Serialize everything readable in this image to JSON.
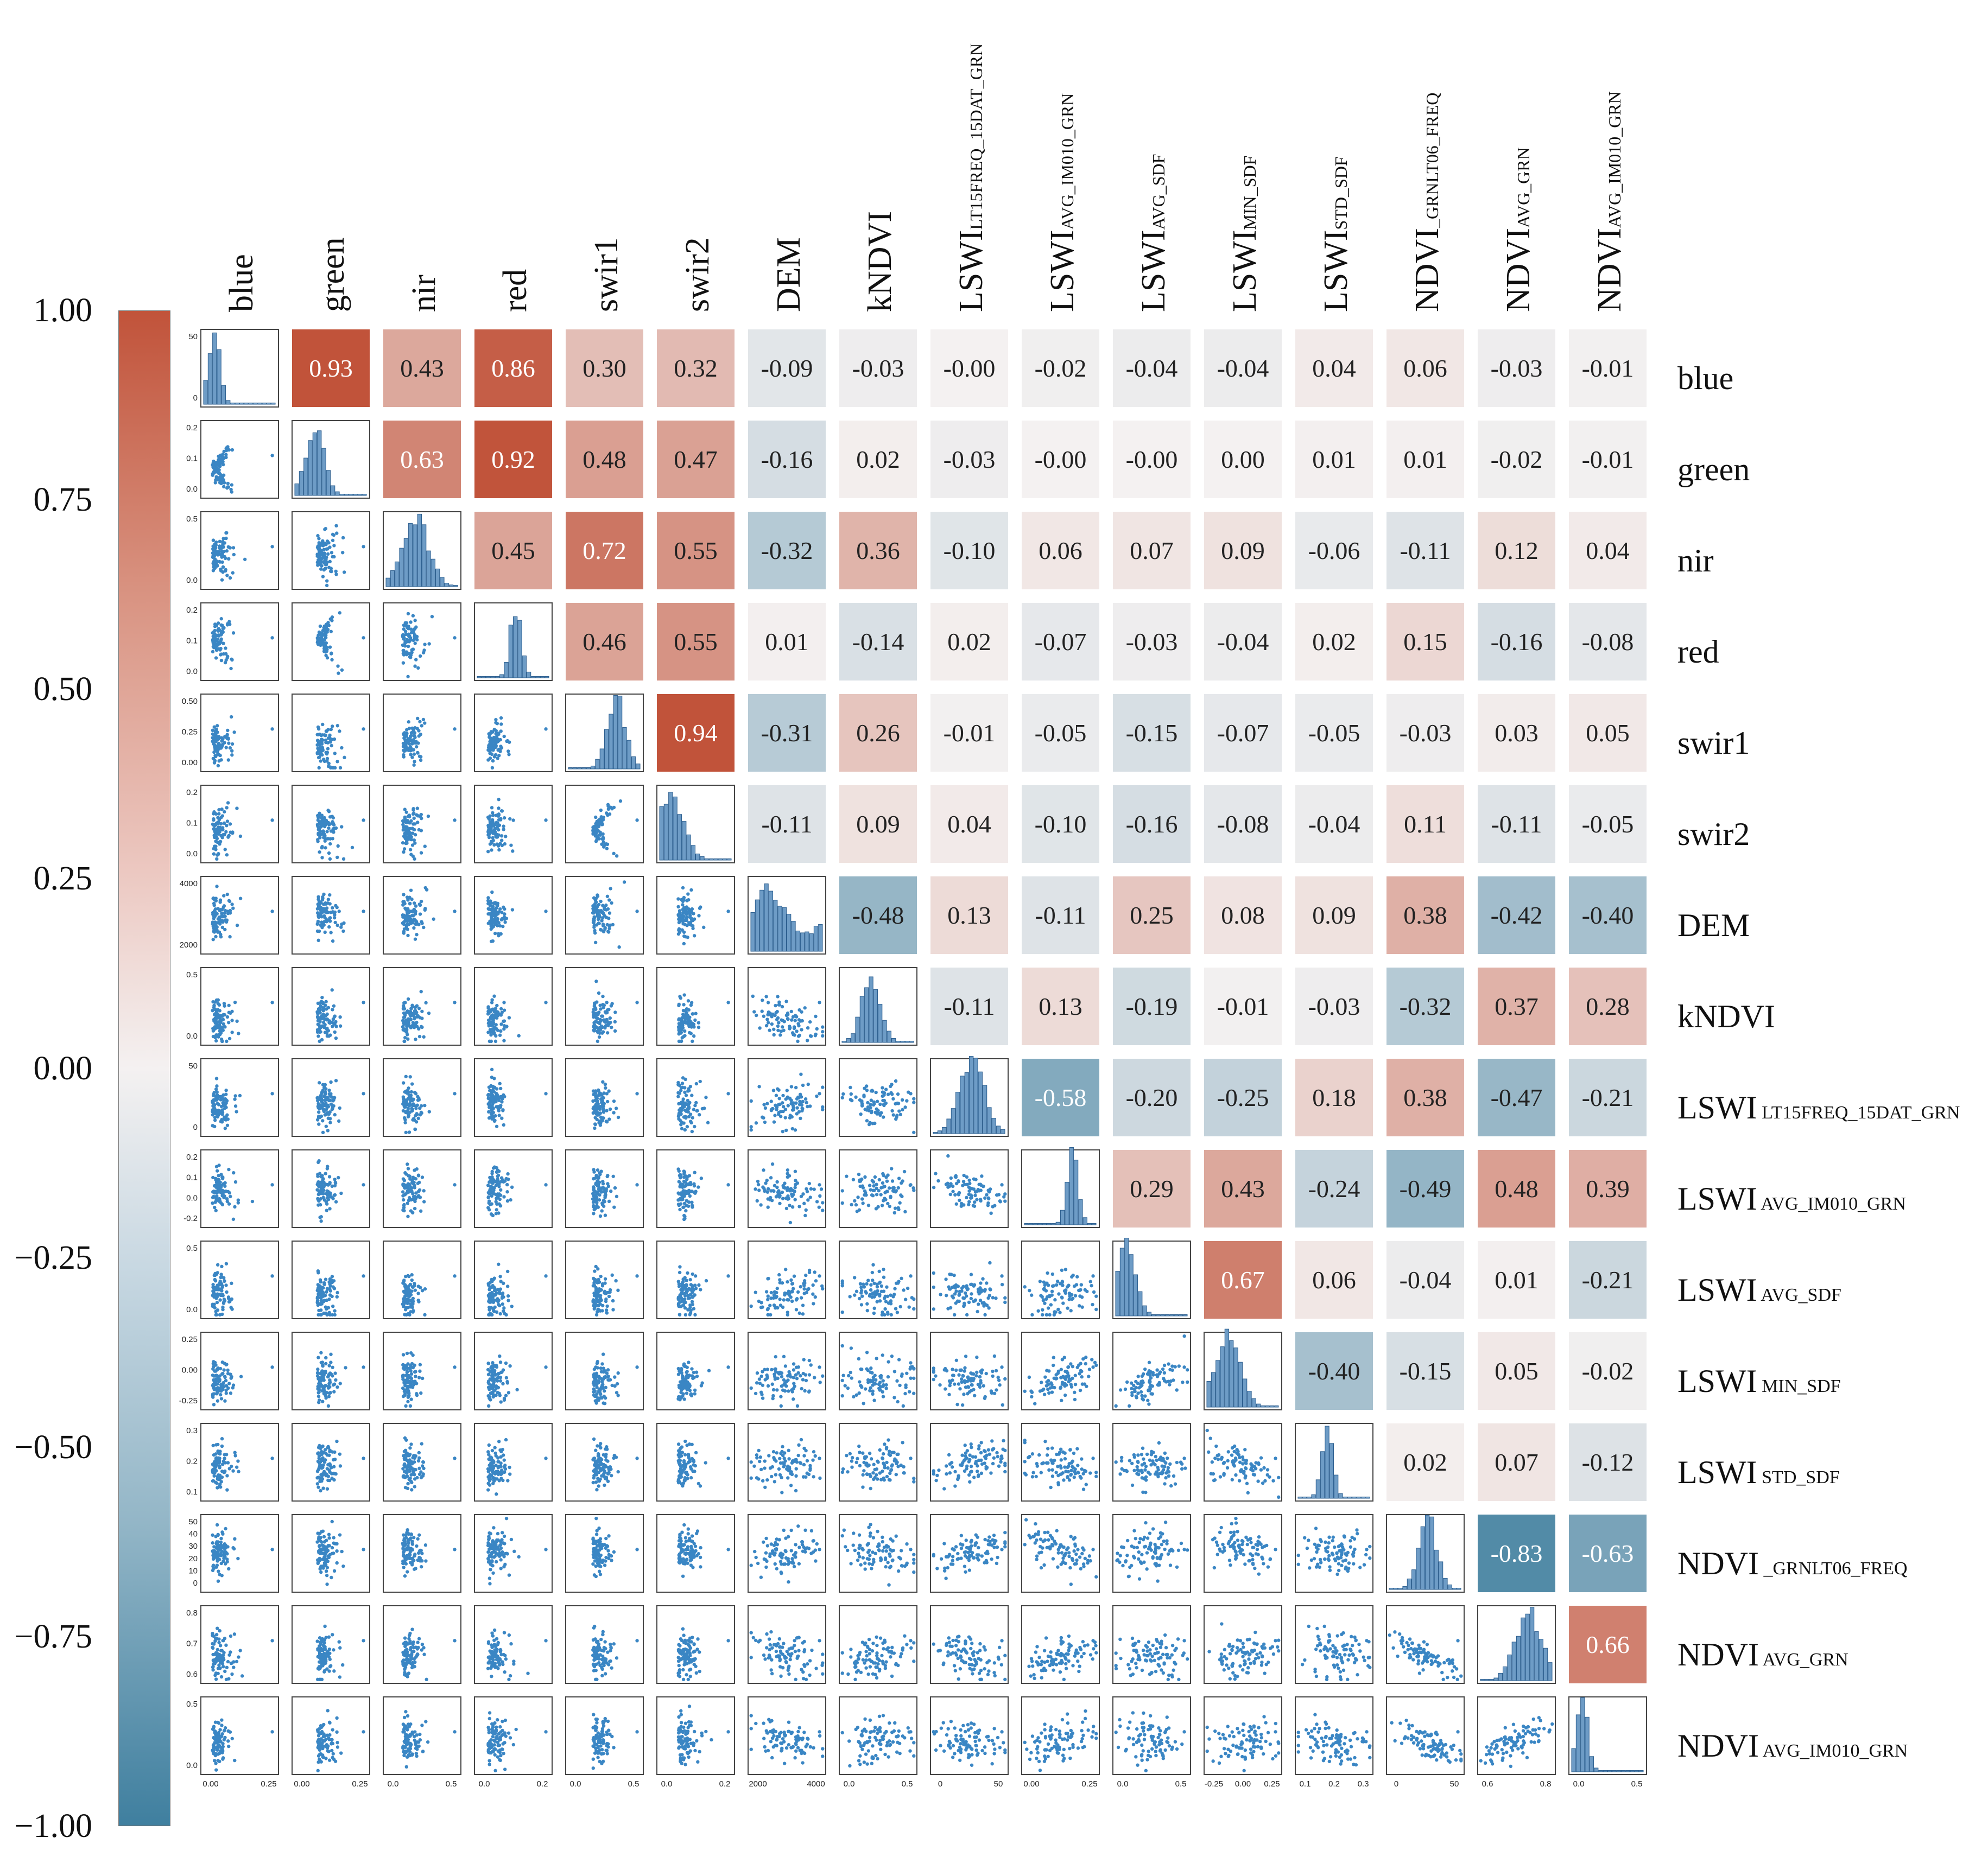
{
  "chart_data": {
    "type": "heatmap",
    "title": "",
    "variables": [
      {
        "name": "blue",
        "label": "blue",
        "sub": ""
      },
      {
        "name": "green",
        "label": "green",
        "sub": ""
      },
      {
        "name": "nir",
        "label": "nir",
        "sub": ""
      },
      {
        "name": "red",
        "label": "red",
        "sub": ""
      },
      {
        "name": "swir1",
        "label": "swir1",
        "sub": ""
      },
      {
        "name": "swir2",
        "label": "swir2",
        "sub": ""
      },
      {
        "name": "DEM",
        "label": "DEM",
        "sub": ""
      },
      {
        "name": "kNDVI",
        "label": "kNDVI",
        "sub": ""
      },
      {
        "name": "LSWI_LT15FREQ_15DAT_GRN",
        "label": "LSWI",
        "sub": "LT15FREQ_15DAT_GRN"
      },
      {
        "name": "LSWI_AVG_IM010_GRN",
        "label": "LSWI",
        "sub": "AVG_IM010_GRN"
      },
      {
        "name": "LSWI_AVG_SDF",
        "label": "LSWI",
        "sub": "AVG_SDF"
      },
      {
        "name": "LSWI_MIN_SDF",
        "label": "LSWI",
        "sub": "MIN_SDF"
      },
      {
        "name": "LSWI_STD_SDF",
        "label": "LSWI",
        "sub": "STD_SDF"
      },
      {
        "name": "NDVI_GRNLT06_FREQ",
        "label": "NDVI",
        "sub": "_GRNLT06_FREQ"
      },
      {
        "name": "NDVI_AVG_GRN",
        "label": "NDVI",
        "sub": "AVG_GRN"
      },
      {
        "name": "NDVI_AVG_IM010_GRN",
        "label": "NDVI",
        "sub": "AVG_IM010_GRN"
      }
    ],
    "colorbar": {
      "range": [
        -1.0,
        1.0
      ],
      "ticks": [
        "1.00",
        "0.75",
        "0.50",
        "0.25",
        "0.00",
        "−0.25",
        "−0.50",
        "−0.75",
        "−1.00"
      ],
      "low_color": "#3f7f9f",
      "mid_color": "#f4f1f1",
      "high_color": "#c1533a"
    },
    "upper_triangle_correlations": [
      [
        "",
        "0.93",
        "0.43",
        "0.86",
        "0.30",
        "0.32",
        "-0.09",
        "-0.03",
        "-0.00",
        "-0.02",
        "-0.04",
        "-0.04",
        "0.04",
        "0.06",
        "-0.03",
        "-0.01"
      ],
      [
        "",
        "",
        "0.63",
        "0.92",
        "0.48",
        "0.47",
        "-0.16",
        "0.02",
        "-0.03",
        "-0.00",
        "-0.00",
        "0.00",
        "0.01",
        "0.01",
        "-0.02",
        "-0.01"
      ],
      [
        "",
        "",
        "",
        "0.45",
        "0.72",
        "0.55",
        "-0.32",
        "0.36",
        "-0.10",
        "0.06",
        "0.07",
        "0.09",
        "-0.06",
        "-0.11",
        "0.12",
        "0.04"
      ],
      [
        "",
        "",
        "",
        "",
        "0.46",
        "0.55",
        "0.01",
        "-0.14",
        "0.02",
        "-0.07",
        "-0.03",
        "-0.04",
        "0.02",
        "0.15",
        "-0.16",
        "-0.08"
      ],
      [
        "",
        "",
        "",
        "",
        "",
        "0.94",
        "-0.31",
        "0.26",
        "-0.01",
        "-0.05",
        "-0.15",
        "-0.07",
        "-0.05",
        "-0.03",
        "0.03",
        "0.05"
      ],
      [
        "",
        "",
        "",
        "",
        "",
        "",
        "-0.11",
        "0.09",
        "0.04",
        "-0.10",
        "-0.16",
        "-0.08",
        "-0.04",
        "0.11",
        "-0.11",
        "-0.05"
      ],
      [
        "",
        "",
        "",
        "",
        "",
        "",
        "",
        "-0.48",
        "0.13",
        "-0.11",
        "0.25",
        "0.08",
        "0.09",
        "0.38",
        "-0.42",
        "-0.40"
      ],
      [
        "",
        "",
        "",
        "",
        "",
        "",
        "",
        "",
        "-0.11",
        "0.13",
        "-0.19",
        "-0.01",
        "-0.03",
        "-0.32",
        "0.37",
        "0.28"
      ],
      [
        "",
        "",
        "",
        "",
        "",
        "",
        "",
        "",
        "",
        "-0.58",
        "-0.20",
        "-0.25",
        "0.18",
        "0.38",
        "-0.47",
        "-0.21"
      ],
      [
        "",
        "",
        "",
        "",
        "",
        "",
        "",
        "",
        "",
        "",
        "0.29",
        "0.43",
        "-0.24",
        "-0.49",
        "0.48",
        "0.39"
      ],
      [
        "",
        "",
        "",
        "",
        "",
        "",
        "",
        "",
        "",
        "",
        "",
        "0.67",
        "0.06",
        "-0.04",
        "0.01",
        "-0.21"
      ],
      [
        "",
        "",
        "",
        "",
        "",
        "",
        "",
        "",
        "",
        "",
        "",
        "",
        "-0.40",
        "-0.15",
        "0.05",
        "-0.02"
      ],
      [
        "",
        "",
        "",
        "",
        "",
        "",
        "",
        "",
        "",
        "",
        "",
        "",
        "",
        "0.02",
        "0.07",
        "-0.12"
      ],
      [
        "",
        "",
        "",
        "",
        "",
        "",
        "",
        "",
        "",
        "",
        "",
        "",
        "",
        "",
        "-0.83",
        "-0.63"
      ],
      [
        "",
        "",
        "",
        "",
        "",
        "",
        "",
        "",
        "",
        "",
        "",
        "",
        "",
        "",
        "",
        "0.66"
      ],
      [
        "",
        "",
        "",
        "",
        "",
        "",
        "",
        "",
        "",
        "",
        "",
        "",
        "",
        "",
        "",
        ""
      ]
    ],
    "diagonal": "histogram",
    "lower_triangle": "scatter",
    "scatter_color": "#3a86c4",
    "y_axis_ticks_first_column": [
      [
        "0",
        "50"
      ],
      [
        "0.0",
        "0.1",
        "0.2"
      ],
      [
        "0.0",
        "0.5"
      ],
      [
        "0.0",
        "0.1",
        "0.2"
      ],
      [
        "0.00",
        "0.25",
        "0.50"
      ],
      [
        "0.0",
        "0.1",
        "0.2"
      ],
      [
        "2000",
        "4000"
      ],
      [
        "0.0",
        "0.5"
      ],
      [
        "0",
        "50"
      ],
      [
        "-0.2",
        "0.0",
        "0.1",
        "0.2"
      ],
      [
        "0.0",
        "0.5"
      ],
      [
        "-0.25",
        "0.00",
        "0.25"
      ],
      [
        "0.1",
        "0.2",
        "0.3"
      ],
      [
        "0",
        "10",
        "20",
        "30",
        "40",
        "50"
      ],
      [
        "0.6",
        "0.7",
        "0.8"
      ],
      [
        "0.0",
        "0.5"
      ]
    ],
    "x_axis_ticks_bottom_row": [
      [
        "0.00",
        "0.25"
      ],
      [
        "0.00",
        "0.25"
      ],
      [
        "0.0",
        "0.5"
      ],
      [
        "0.0",
        "0.2"
      ],
      [
        "0.0",
        "0.5"
      ],
      [
        "0.0",
        "0.2"
      ],
      [
        "2000",
        "4000"
      ],
      [
        "0.0",
        "0.5"
      ],
      [
        "0",
        "50"
      ],
      [
        "0.00",
        "0.25"
      ],
      [
        "0.0",
        "0.5"
      ],
      [
        "-0.25",
        "0.00",
        "0.25"
      ],
      [
        "0.1",
        "0.2",
        "0.3"
      ],
      [
        "0",
        "50"
      ],
      [
        "0.6",
        "0.8"
      ],
      [
        "0.0",
        "0.5"
      ]
    ]
  }
}
